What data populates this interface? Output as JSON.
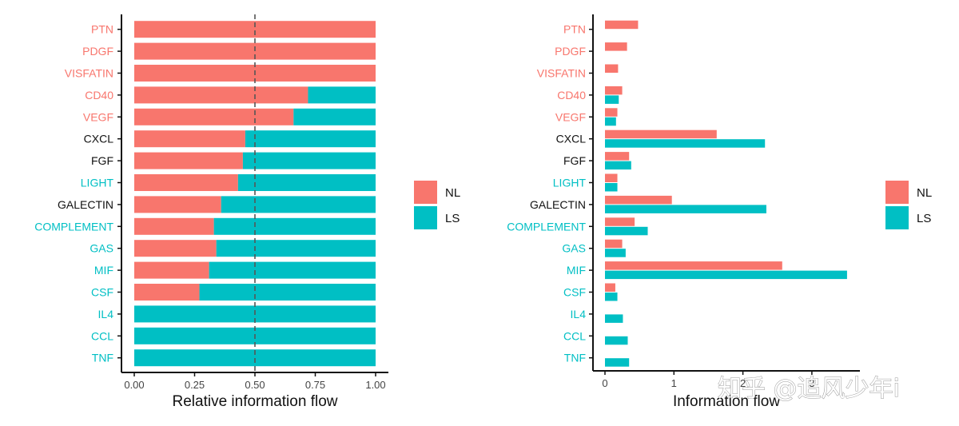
{
  "colors": {
    "NL": "#F8766D",
    "LS": "#00BFC4",
    "label_plain": "#111111",
    "axis": "#111111"
  },
  "watermark": "知乎 @追风少年i",
  "chart_data": [
    {
      "type": "bar",
      "orientation": "horizontal",
      "stacked": true,
      "categories": [
        "PTN",
        "PDGF",
        "VISFATIN",
        "CD40",
        "VEGF",
        "CXCL",
        "FGF",
        "LIGHT",
        "GALECTIN",
        "COMPLEMENT",
        "GAS",
        "MIF",
        "CSF",
        "IL4",
        "CCL",
        "TNF"
      ],
      "category_label_color": [
        "NL",
        "NL",
        "NL",
        "NL",
        "NL",
        "plain",
        "plain",
        "LS",
        "plain",
        "LS",
        "LS",
        "LS",
        "LS",
        "LS",
        "LS",
        "LS"
      ],
      "series": [
        {
          "name": "NL",
          "values": [
            1.0,
            1.0,
            1.0,
            0.72,
            0.66,
            0.46,
            0.45,
            0.43,
            0.36,
            0.33,
            0.34,
            0.31,
            0.27,
            0,
            0,
            0
          ]
        },
        {
          "name": "LS",
          "values": [
            0,
            0,
            0,
            0.28,
            0.34,
            0.54,
            0.55,
            0.57,
            0.64,
            0.67,
            0.66,
            0.69,
            0.73,
            1.0,
            1.0,
            1.0
          ]
        }
      ],
      "xlabel": "Relative information flow",
      "xlim": [
        0,
        1
      ],
      "xticks": [
        "0.00",
        "0.25",
        "0.50",
        "0.75",
        "1.00"
      ],
      "reference_line": 0.5,
      "legend": [
        "NL",
        "LS"
      ],
      "legend_position": "right"
    },
    {
      "type": "bar",
      "orientation": "horizontal",
      "grouped": true,
      "categories": [
        "PTN",
        "PDGF",
        "VISFATIN",
        "CD40",
        "VEGF",
        "CXCL",
        "FGF",
        "LIGHT",
        "GALECTIN",
        "COMPLEMENT",
        "GAS",
        "MIF",
        "CSF",
        "IL4",
        "CCL",
        "TNF"
      ],
      "category_label_color": [
        "NL",
        "NL",
        "NL",
        "NL",
        "NL",
        "plain",
        "plain",
        "LS",
        "plain",
        "LS",
        "LS",
        "LS",
        "LS",
        "LS",
        "LS",
        "LS"
      ],
      "series": [
        {
          "name": "NL",
          "values": [
            0.48,
            0.32,
            0.19,
            0.25,
            0.18,
            1.62,
            0.35,
            0.18,
            0.97,
            0.43,
            0.25,
            2.57,
            0.15,
            0,
            0,
            0
          ]
        },
        {
          "name": "LS",
          "values": [
            0,
            0,
            0,
            0.2,
            0.16,
            2.32,
            0.38,
            0.18,
            2.34,
            0.62,
            0.3,
            3.51,
            0.18,
            0.26,
            0.33,
            0.35
          ]
        }
      ],
      "xlabel": "Information flow",
      "xticks": [
        "0",
        "1",
        "2",
        "3"
      ],
      "xlim": [
        0,
        3.6
      ],
      "legend": [
        "NL",
        "LS"
      ],
      "legend_position": "right"
    }
  ]
}
